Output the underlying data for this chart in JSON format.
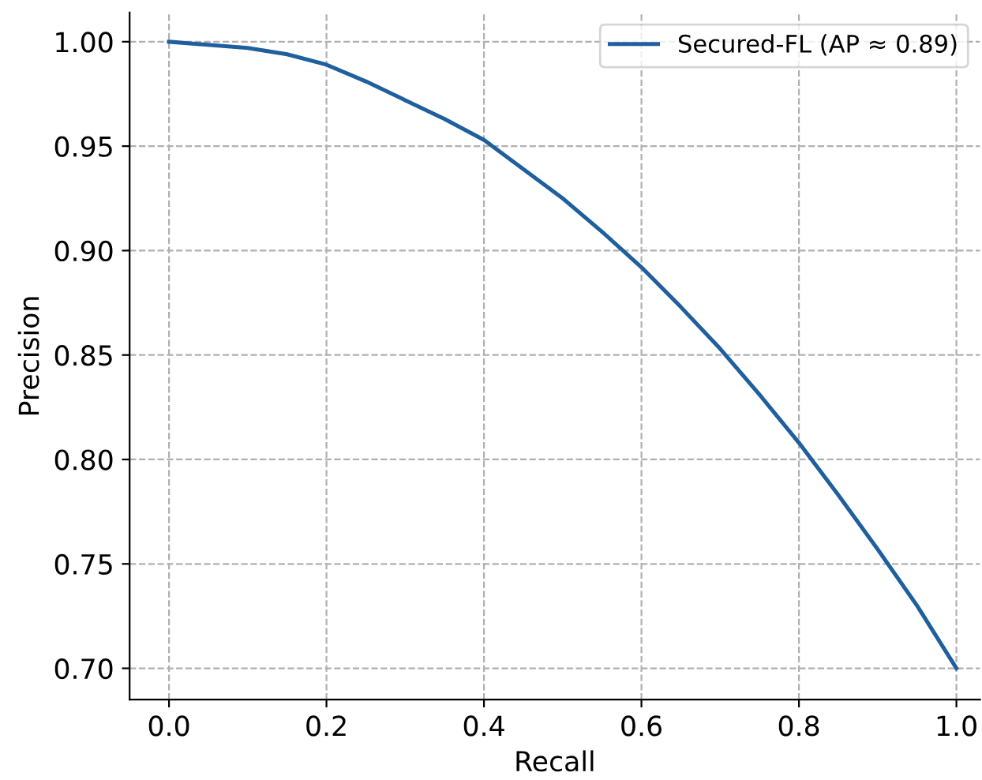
{
  "chart_data": {
    "type": "line",
    "xlabel": "Recall",
    "ylabel": "Precision",
    "series": [
      {
        "name": "Secured-FL (AP ≈ 0.89)",
        "color": "#1f5f9e",
        "x": [
          0.0,
          0.1,
          0.15,
          0.2,
          0.25,
          0.3,
          0.35,
          0.4,
          0.45,
          0.5,
          0.55,
          0.6,
          0.65,
          0.7,
          0.75,
          0.8,
          0.85,
          0.9,
          0.95,
          1.0
        ],
        "values": [
          1.0,
          0.997,
          0.994,
          0.989,
          0.981,
          0.972,
          0.963,
          0.953,
          0.939,
          0.925,
          0.909,
          0.892,
          0.873,
          0.853,
          0.831,
          0.808,
          0.783,
          0.757,
          0.73,
          0.7
        ]
      }
    ],
    "xlim": [
      -0.05,
      1.03
    ],
    "ylim": [
      0.685,
      1.014
    ],
    "xticks": [
      {
        "value": 0,
        "label": "0.0"
      },
      0.2,
      0.4,
      0.6,
      0.8,
      {
        "value": 1,
        "label": "1.0"
      }
    ],
    "yticks": [
      {
        "value": 0.7,
        "label": "0.70"
      },
      0.75,
      {
        "value": 0.8,
        "label": "0.80"
      },
      0.85,
      {
        "value": 0.9,
        "label": "0.90"
      },
      0.95,
      {
        "value": 1,
        "label": "1.00"
      }
    ],
    "grid": true,
    "legend": "top right",
    "marker": "none",
    "line_style": "solid"
  }
}
